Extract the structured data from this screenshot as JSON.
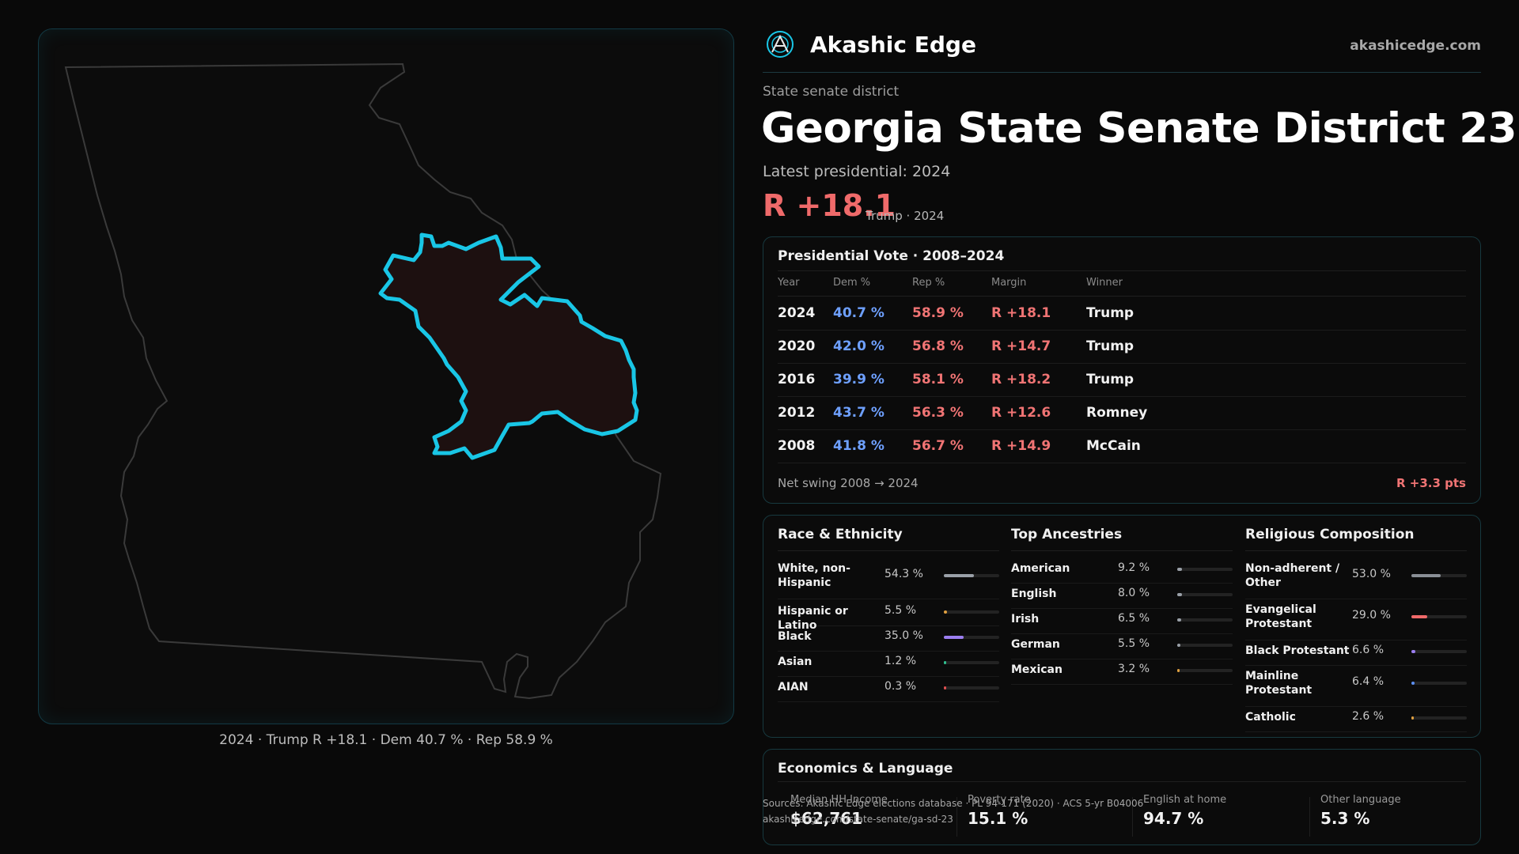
{
  "brand": {
    "name": "Akashic Edge",
    "url": "akashicedge.com"
  },
  "header": {
    "kicker": "State senate district",
    "title": "Georgia State Senate District 23",
    "latest": "Latest presidential: 2024",
    "margin": "R +18.1",
    "margin_sub": "Trump · 2024"
  },
  "map": {
    "caption": "2024 · Trump R +18.1 · Dem 40.7 % · Rep 58.9 %",
    "state": "Georgia",
    "colors": {
      "highlight": "#19c6e6",
      "district_fill": "#1d1010",
      "state_outline": "#3a3a3a"
    }
  },
  "presidential": {
    "title": "Presidential Vote · 2008–2024",
    "columns": [
      "Year",
      "Dem %",
      "Rep %",
      "Margin",
      "Winner"
    ],
    "rows": [
      {
        "year": "2024",
        "dem": "40.7 %",
        "rep": "58.9 %",
        "margin": "R +18.1",
        "winner": "Trump"
      },
      {
        "year": "2020",
        "dem": "42.0 %",
        "rep": "56.8 %",
        "margin": "R +14.7",
        "winner": "Trump"
      },
      {
        "year": "2016",
        "dem": "39.9 %",
        "rep": "58.1 %",
        "margin": "R +18.2",
        "winner": "Trump"
      },
      {
        "year": "2012",
        "dem": "43.7 %",
        "rep": "56.3 %",
        "margin": "R +12.6",
        "winner": "Romney"
      },
      {
        "year": "2008",
        "dem": "41.8 %",
        "rep": "56.7 %",
        "margin": "R +14.9",
        "winner": "McCain"
      }
    ],
    "swing_label": "Net swing 2008 → 2024",
    "swing_value": "R +3.3 pts"
  },
  "race": {
    "title": "Race & Ethnicity",
    "items": [
      {
        "label": "White, non-Hispanic",
        "value": "54.3 %",
        "fraction": 0.543,
        "color": "#9aa0a8"
      },
      {
        "label": "Hispanic or Latino",
        "value": "5.5 %",
        "fraction": 0.055,
        "color": "#e0a040"
      },
      {
        "label": "Black",
        "value": "35.0 %",
        "fraction": 0.35,
        "color": "#9b7ef0"
      },
      {
        "label": "Asian",
        "value": "1.2 %",
        "fraction": 0.012,
        "color": "#30c090"
      },
      {
        "label": "AIAN",
        "value": "0.3 %",
        "fraction": 0.003,
        "color": "#e05050"
      }
    ]
  },
  "ancestry": {
    "title": "Top Ancestries",
    "items": [
      {
        "label": "American",
        "value": "9.2 %",
        "fraction": 0.092,
        "color": "#9aa0a8"
      },
      {
        "label": "English",
        "value": "8.0 %",
        "fraction": 0.08,
        "color": "#9aa0a8"
      },
      {
        "label": "Irish",
        "value": "6.5 %",
        "fraction": 0.065,
        "color": "#9aa0a8"
      },
      {
        "label": "German",
        "value": "5.5 %",
        "fraction": 0.055,
        "color": "#9aa0a8"
      },
      {
        "label": "Mexican",
        "value": "3.2 %",
        "fraction": 0.032,
        "color": "#e0a040"
      }
    ]
  },
  "religion": {
    "title": "Religious Composition",
    "items": [
      {
        "label": "Non-adherent / Other",
        "value": "53.0 %",
        "fraction": 0.53,
        "color": "#8a8f96"
      },
      {
        "label": "Evangelical Protestant",
        "value": "29.0 %",
        "fraction": 0.29,
        "color": "#ef6a6a"
      },
      {
        "label": "Black Protestant",
        "value": "6.6 %",
        "fraction": 0.066,
        "color": "#9b7ef0"
      },
      {
        "label": "Mainline Protestant",
        "value": "6.4 %",
        "fraction": 0.064,
        "color": "#5b8ef0"
      },
      {
        "label": "Catholic",
        "value": "2.6 %",
        "fraction": 0.026,
        "color": "#e0a040"
      }
    ]
  },
  "economics": {
    "title": "Economics & Language",
    "stats": [
      {
        "label": "Median HH Income",
        "value": "$62,761"
      },
      {
        "label": "Poverty rate",
        "value": "15.1 %"
      },
      {
        "label": "English at home",
        "value": "94.7 %"
      },
      {
        "label": "Other language",
        "value": "5.3 %"
      }
    ]
  },
  "sources": {
    "line1": "Sources: Akashic Edge elections database · PL 94-171 (2020) · ACS 5-yr B04006",
    "line2": "akashicedge.com/state-senate/ga-sd-23"
  }
}
